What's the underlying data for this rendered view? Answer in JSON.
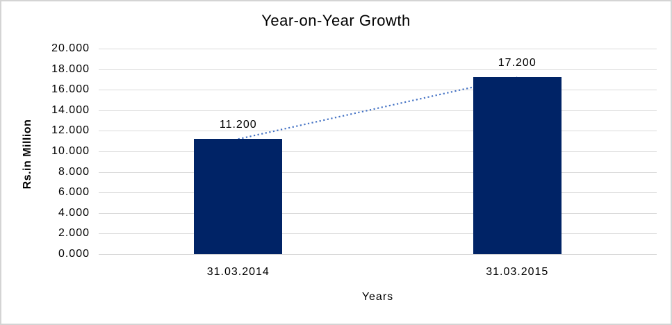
{
  "chart_data": {
    "type": "bar",
    "title": "Year-on-Year Growth",
    "xlabel": "Years",
    "ylabel": "Rs.in Million",
    "categories": [
      "31.03.2014",
      "31.03.2015"
    ],
    "values": [
      11.2,
      17.2
    ],
    "value_labels": [
      "11.200",
      "17.200"
    ],
    "ylim": [
      0,
      20
    ],
    "y_tick_step": 2,
    "y_tick_labels": [
      "0.000",
      "2.000",
      "4.000",
      "6.000",
      "8.000",
      "10.000",
      "12.000",
      "14.000",
      "16.000",
      "18.000",
      "20.000"
    ],
    "grid": "horizontal",
    "legend": "none",
    "trendline": {
      "style": "dotted",
      "from_value": 11.2,
      "to_value": 17.2
    },
    "colors": {
      "bar_fill": "#002366",
      "trendline": "#4472C4",
      "gridline": "#D9D9D9",
      "text": "#000000",
      "frame_border": "#D4D4D4",
      "background": "#FFFFFF"
    }
  }
}
